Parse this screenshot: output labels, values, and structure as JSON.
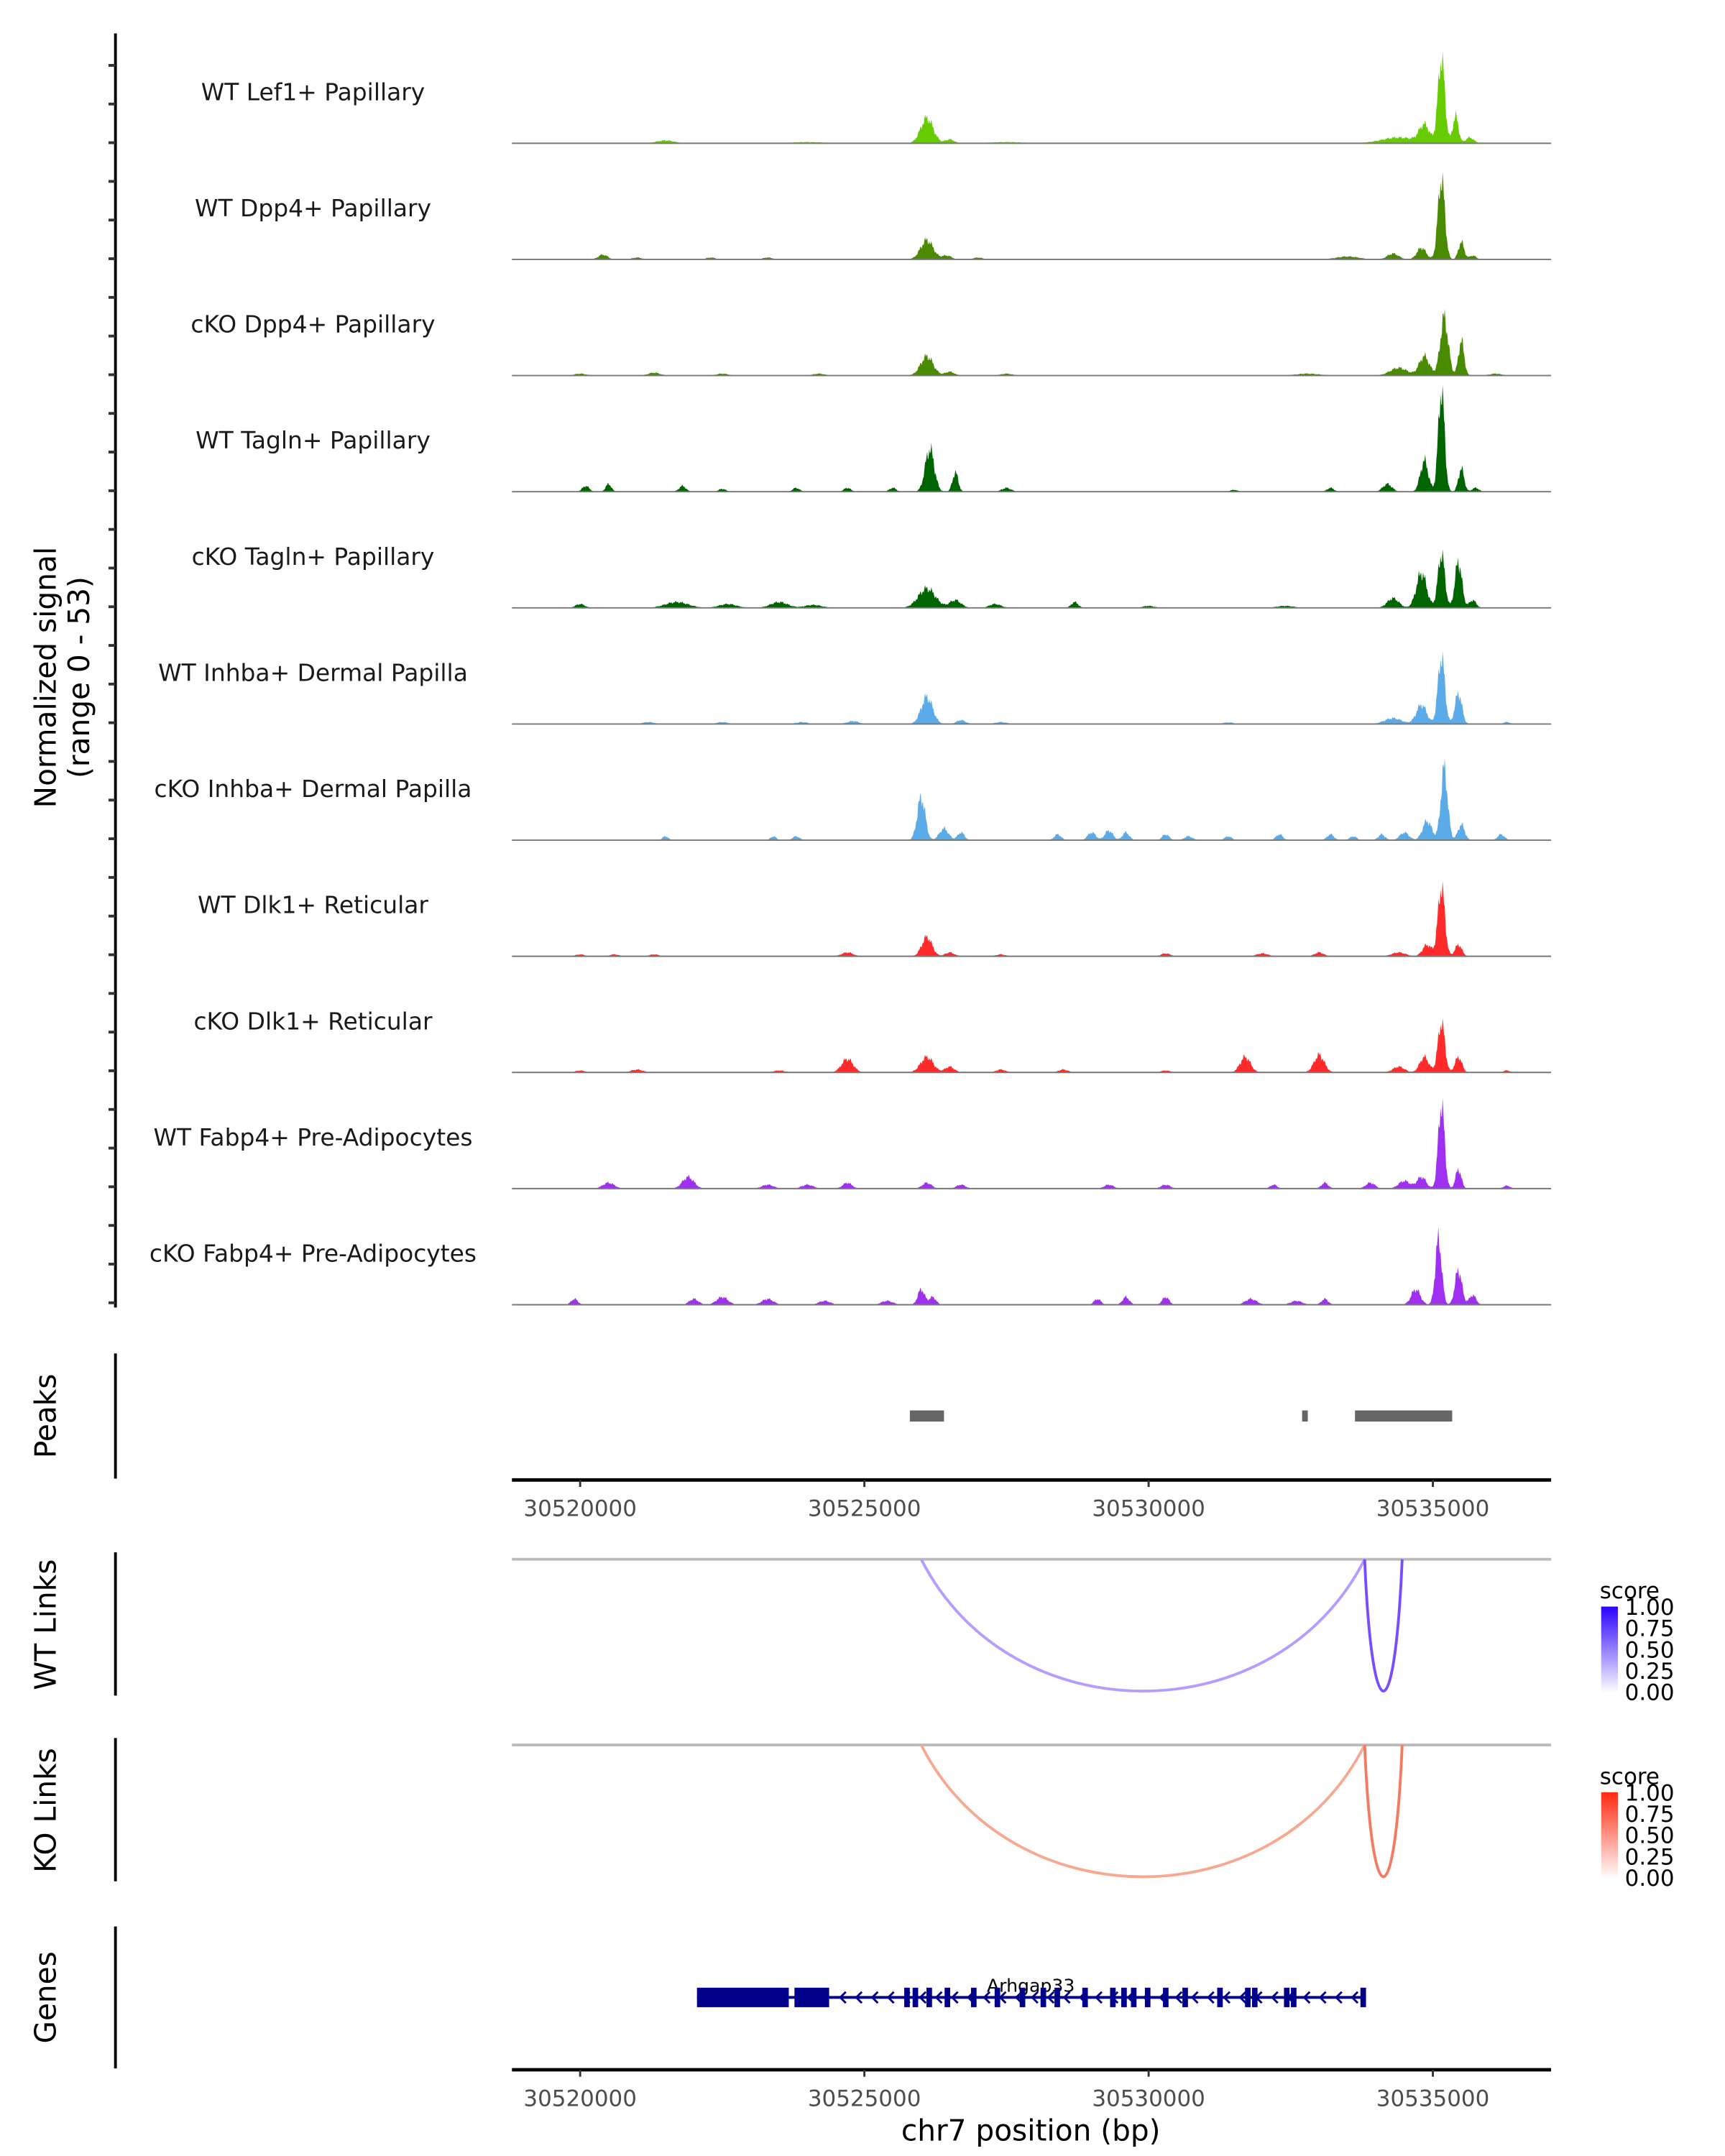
{
  "chart_data": {
    "type": "area",
    "title": "",
    "ylabel_line1": "Normalized signal",
    "ylabel_line2": "(range 0 - 53)",
    "ymax": 53,
    "xlabel": "chr7 position (bp)",
    "xlim": [
      30518800,
      30537080
    ],
    "xticks": [
      30520000,
      30525000,
      30530000,
      30535000
    ],
    "xtick_labels": [
      "30520000",
      "30525000",
      "30530000",
      "30535000"
    ],
    "tracks": [
      {
        "name": "WT Lef1+ Papillary",
        "color": "#66cc00",
        "peaks": [
          [
            30521500,
            1.5,
            150
          ],
          [
            30526100,
            13,
            110
          ],
          [
            30526500,
            2,
            80
          ],
          [
            30524000,
            0.6,
            300
          ],
          [
            30527500,
            0.6,
            300
          ],
          [
            30534400,
            3,
            300
          ],
          [
            30534850,
            9,
            90
          ],
          [
            30535150,
            44,
            60
          ],
          [
            30535400,
            14,
            50
          ],
          [
            30535650,
            3,
            70
          ]
        ]
      },
      {
        "name": "WT Dpp4+ Papillary",
        "color": "#4a8a00",
        "peaks": [
          [
            30520400,
            2.5,
            80
          ],
          [
            30521000,
            1,
            80
          ],
          [
            30522300,
            1,
            80
          ],
          [
            30523300,
            1,
            80
          ],
          [
            30526100,
            10,
            110
          ],
          [
            30526450,
            2,
            80
          ],
          [
            30527000,
            1,
            80
          ],
          [
            30533500,
            1.5,
            200
          ],
          [
            30534300,
            3,
            100
          ],
          [
            30534800,
            6,
            80
          ],
          [
            30535150,
            42,
            60
          ],
          [
            30535500,
            9,
            50
          ],
          [
            30535700,
            2,
            60
          ]
        ]
      },
      {
        "name": "cKO Dpp4+ Papillary",
        "color": "#4a8a00",
        "peaks": [
          [
            30520000,
            1,
            100
          ],
          [
            30521300,
            1.5,
            100
          ],
          [
            30522500,
            1,
            100
          ],
          [
            30524200,
            1,
            100
          ],
          [
            30526100,
            10,
            110
          ],
          [
            30526500,
            2,
            80
          ],
          [
            30527500,
            1,
            100
          ],
          [
            30532800,
            1,
            200
          ],
          [
            30534400,
            4,
            150
          ],
          [
            30534850,
            10,
            90
          ],
          [
            30535200,
            30,
            70
          ],
          [
            30535500,
            18,
            50
          ],
          [
            30536100,
            1,
            100
          ]
        ]
      },
      {
        "name": "WT Tagln+ Papillary",
        "color": "#006400",
        "peaks": [
          [
            30520100,
            3,
            60
          ],
          [
            30520500,
            4,
            50
          ],
          [
            30521800,
            3,
            60
          ],
          [
            30522500,
            1.5,
            60
          ],
          [
            30523800,
            2,
            60
          ],
          [
            30524700,
            2,
            60
          ],
          [
            30525500,
            2,
            60
          ],
          [
            30526150,
            22,
            80
          ],
          [
            30526600,
            10,
            50
          ],
          [
            30527500,
            2,
            80
          ],
          [
            30531500,
            1,
            60
          ],
          [
            30533200,
            2,
            60
          ],
          [
            30534200,
            4,
            80
          ],
          [
            30534850,
            16,
            70
          ],
          [
            30535150,
            53,
            55
          ],
          [
            30535500,
            12,
            50
          ],
          [
            30535750,
            2,
            60
          ]
        ]
      },
      {
        "name": "cKO Tagln+ Papillary",
        "color": "#006400",
        "peaks": [
          [
            30520000,
            2,
            80
          ],
          [
            30521700,
            3,
            200
          ],
          [
            30522600,
            2,
            150
          ],
          [
            30523500,
            3,
            150
          ],
          [
            30524100,
            1.5,
            150
          ],
          [
            30526100,
            10,
            150
          ],
          [
            30526600,
            4,
            100
          ],
          [
            30527300,
            2,
            100
          ],
          [
            30528700,
            3,
            60
          ],
          [
            30530000,
            1,
            100
          ],
          [
            30532400,
            1,
            150
          ],
          [
            30534300,
            5,
            100
          ],
          [
            30534800,
            18,
            90
          ],
          [
            30535150,
            28,
            60
          ],
          [
            30535450,
            24,
            60
          ],
          [
            30535700,
            4,
            60
          ]
        ]
      },
      {
        "name": "WT Inhba+ Dermal Papilla",
        "color": "#5aabe8",
        "peaks": [
          [
            30521200,
            1,
            100
          ],
          [
            30522500,
            1,
            100
          ],
          [
            30523900,
            1,
            100
          ],
          [
            30524800,
            1.5,
            100
          ],
          [
            30526100,
            14,
            100
          ],
          [
            30526700,
            2,
            80
          ],
          [
            30527400,
            1,
            100
          ],
          [
            30531400,
            0.8,
            100
          ],
          [
            30534300,
            3,
            150
          ],
          [
            30534800,
            10,
            90
          ],
          [
            30535150,
            35,
            60
          ],
          [
            30535450,
            16,
            60
          ],
          [
            30536300,
            1,
            60
          ]
        ]
      },
      {
        "name": "cKO Inhba+ Dermal Papilla",
        "color": "#5aabe8",
        "peaks": [
          [
            30521500,
            2,
            50
          ],
          [
            30523400,
            2,
            50
          ],
          [
            30523800,
            2,
            60
          ],
          [
            30526000,
            22,
            70
          ],
          [
            30526400,
            6,
            80
          ],
          [
            30526700,
            4,
            60
          ],
          [
            30528400,
            3,
            60
          ],
          [
            30529000,
            4,
            70
          ],
          [
            30529300,
            5,
            70
          ],
          [
            30529600,
            4,
            60
          ],
          [
            30530300,
            3,
            60
          ],
          [
            30530700,
            2,
            70
          ],
          [
            30531400,
            2,
            60
          ],
          [
            30532300,
            3,
            60
          ],
          [
            30533200,
            3,
            60
          ],
          [
            30533600,
            2,
            60
          ],
          [
            30534100,
            3,
            60
          ],
          [
            30534500,
            4,
            80
          ],
          [
            30534900,
            10,
            80
          ],
          [
            30535200,
            37,
            60
          ],
          [
            30535500,
            8,
            60
          ],
          [
            30536200,
            3,
            60
          ]
        ]
      },
      {
        "name": "WT Dlk1+ Reticular",
        "color": "#ff2a2a",
        "peaks": [
          [
            30520000,
            1,
            80
          ],
          [
            30520600,
            1,
            80
          ],
          [
            30521300,
            1,
            80
          ],
          [
            30524700,
            2,
            100
          ],
          [
            30526100,
            10,
            90
          ],
          [
            30526500,
            2,
            80
          ],
          [
            30527400,
            1,
            80
          ],
          [
            30530300,
            1.5,
            80
          ],
          [
            30532000,
            1.5,
            100
          ],
          [
            30533000,
            2,
            80
          ],
          [
            30534400,
            2,
            120
          ],
          [
            30534900,
            6,
            80
          ],
          [
            30535150,
            36,
            60
          ],
          [
            30535450,
            6,
            60
          ]
        ]
      },
      {
        "name": "cKO Dlk1+ Reticular",
        "color": "#ff2a2a",
        "peaks": [
          [
            30520000,
            1,
            80
          ],
          [
            30521000,
            1.5,
            100
          ],
          [
            30523500,
            1,
            100
          ],
          [
            30524700,
            7,
            100
          ],
          [
            30526100,
            8,
            110
          ],
          [
            30526500,
            3,
            80
          ],
          [
            30527400,
            1.5,
            80
          ],
          [
            30528500,
            1.5,
            80
          ],
          [
            30530300,
            1,
            80
          ],
          [
            30531700,
            8,
            90
          ],
          [
            30533000,
            9,
            90
          ],
          [
            30534400,
            3,
            100
          ],
          [
            30534850,
            8,
            80
          ],
          [
            30535150,
            26,
            60
          ],
          [
            30535450,
            8,
            60
          ],
          [
            30536300,
            1,
            60
          ]
        ]
      },
      {
        "name": "WT Fabp4+ Pre-Adipocytes",
        "color": "#a030f0",
        "peaks": [
          [
            30520500,
            3,
            100
          ],
          [
            30521900,
            6,
            100
          ],
          [
            30523300,
            2,
            100
          ],
          [
            30524000,
            2,
            100
          ],
          [
            30524700,
            3,
            80
          ],
          [
            30526100,
            3,
            80
          ],
          [
            30526700,
            2,
            80
          ],
          [
            30529300,
            2,
            80
          ],
          [
            30530300,
            2,
            80
          ],
          [
            30532200,
            2,
            60
          ],
          [
            30533100,
            3,
            60
          ],
          [
            30533900,
            3,
            80
          ],
          [
            30534500,
            4,
            100
          ],
          [
            30534800,
            6,
            80
          ],
          [
            30535150,
            44,
            55
          ],
          [
            30535450,
            10,
            50
          ],
          [
            30536300,
            1.5,
            60
          ]
        ]
      },
      {
        "name": "cKO Fabp4+ Pre-Adipocytes",
        "color": "#a030f0",
        "peaks": [
          [
            30519900,
            3,
            60
          ],
          [
            30522000,
            3,
            80
          ],
          [
            30522500,
            4,
            100
          ],
          [
            30523300,
            3,
            100
          ],
          [
            30524300,
            2,
            100
          ],
          [
            30525400,
            2,
            100
          ],
          [
            30526000,
            8,
            60
          ],
          [
            30526200,
            4,
            60
          ],
          [
            30529100,
            3,
            60
          ],
          [
            30529600,
            4,
            60
          ],
          [
            30530300,
            4,
            60
          ],
          [
            30531800,
            3,
            100
          ],
          [
            30532600,
            2,
            100
          ],
          [
            30533100,
            3,
            60
          ],
          [
            30534700,
            8,
            80
          ],
          [
            30535100,
            34,
            55
          ],
          [
            30535450,
            18,
            60
          ],
          [
            30535700,
            5,
            60
          ]
        ]
      }
    ],
    "peaks_track": {
      "label": "Peaks",
      "color": "#666666",
      "regions": [
        [
          30525800,
          30526400
        ],
        [
          30532700,
          30532800
        ],
        [
          30533630,
          30535340
        ]
      ]
    },
    "links": [
      {
        "label": "WT Links",
        "legend_title": "score",
        "legend_ticks": [
          "1.00",
          "0.75",
          "0.50",
          "0.25",
          "0.00"
        ],
        "color_high": "#2b00ff",
        "arcs": [
          {
            "start": 30526000,
            "end": 30533800,
            "score": 0.35,
            "color": "#b69cff"
          },
          {
            "start": 30533800,
            "end": 30534460,
            "score": 0.75,
            "color": "#7a4cff"
          }
        ]
      },
      {
        "label": "KO Links",
        "legend_title": "score",
        "legend_ticks": [
          "1.00",
          "0.75",
          "0.50",
          "0.25",
          "0.00"
        ],
        "color_high": "#ff2a10",
        "arcs": [
          {
            "start": 30526000,
            "end": 30533800,
            "score": 0.35,
            "color": "#f8a890"
          },
          {
            "start": 30533800,
            "end": 30534460,
            "score": 0.7,
            "color": "#f47a62"
          }
        ]
      }
    ],
    "genes": {
      "label": "Genes",
      "name": "Arhgap33",
      "color": "#00008b",
      "start": 30522055,
      "end": 30533800,
      "strand": "-",
      "thick_exons": [
        [
          30522055,
          30523670
        ],
        [
          30523770,
          30524380
        ]
      ],
      "exons": [
        30525750,
        30525897,
        30526141,
        30526460,
        30526924,
        30527340,
        30527781,
        30528148,
        30528393,
        30528882,
        30529371,
        30529567,
        30529738,
        30529983,
        30530301,
        30530643,
        30531255,
        30531745,
        30531867,
        30532430,
        30532552,
        30533775
      ]
    }
  }
}
